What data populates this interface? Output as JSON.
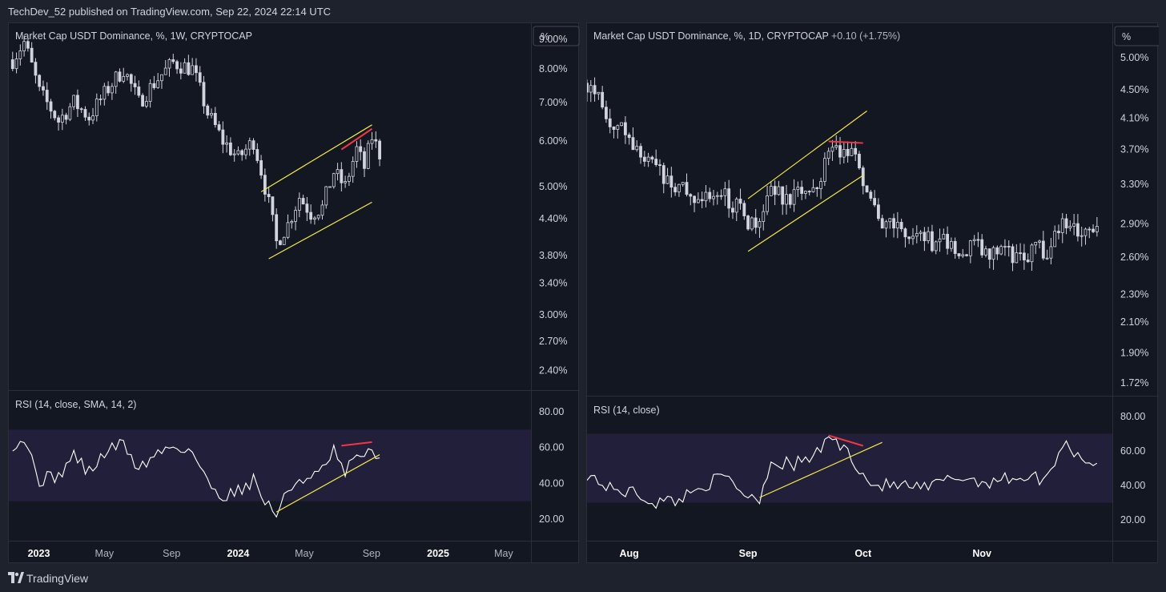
{
  "header": {
    "publisher": "TechDev_52 published on TradingView.com, Sep 22, 2024 22:14 UTC"
  },
  "footer": {
    "brand": "TradingView"
  },
  "colors": {
    "background": "#131722",
    "candle": "#d1d4dc",
    "channel": "#f3e84a",
    "divergence": "#f23645",
    "rsi_band": "#221f3a",
    "text": "#d1d4dc"
  },
  "chart_data": [
    {
      "type": "candlestick",
      "title": "Market Cap USDT Dominance, %, 1W, CRYPTOCAP",
      "unit_label": "%",
      "scale": "log",
      "y_ticks": [
        "9.00%",
        "8.00%",
        "7.00%",
        "6.00%",
        "5.00%",
        "4.40%",
        "3.80%",
        "3.40%",
        "3.00%",
        "2.70%",
        "2.40%"
      ],
      "x_ticks": [
        "2023",
        "May",
        "Sep",
        "2024",
        "May",
        "Sep",
        "2025",
        "May"
      ],
      "close_path": [
        {
          "date": "2022-11-14",
          "value": 8.3
        },
        {
          "date": "2022-12-05",
          "value": 8.9
        },
        {
          "date": "2023-01-02",
          "value": 7.3
        },
        {
          "date": "2023-02-06",
          "value": 6.5
        },
        {
          "date": "2023-03-06",
          "value": 7.0
        },
        {
          "date": "2023-04-03",
          "value": 6.6
        },
        {
          "date": "2023-05-08",
          "value": 7.4
        },
        {
          "date": "2023-06-05",
          "value": 8.0
        },
        {
          "date": "2023-07-03",
          "value": 7.0
        },
        {
          "date": "2023-08-07",
          "value": 7.7
        },
        {
          "date": "2023-09-04",
          "value": 8.2
        },
        {
          "date": "2023-10-09",
          "value": 8.0
        },
        {
          "date": "2023-11-06",
          "value": 6.7
        },
        {
          "date": "2023-12-04",
          "value": 6.0
        },
        {
          "date": "2024-01-01",
          "value": 5.6
        },
        {
          "date": "2024-01-29",
          "value": 6.0
        },
        {
          "date": "2024-02-19",
          "value": 5.0
        },
        {
          "date": "2024-03-11",
          "value": 4.0
        },
        {
          "date": "2024-04-01",
          "value": 4.3
        },
        {
          "date": "2024-04-22",
          "value": 4.8
        },
        {
          "date": "2024-05-13",
          "value": 4.5
        },
        {
          "date": "2024-06-03",
          "value": 4.6
        },
        {
          "date": "2024-06-24",
          "value": 5.3
        },
        {
          "date": "2024-07-15",
          "value": 5.0
        },
        {
          "date": "2024-08-05",
          "value": 5.8
        },
        {
          "date": "2024-08-19",
          "value": 5.4
        },
        {
          "date": "2024-09-02",
          "value": 6.1
        },
        {
          "date": "2024-09-16",
          "value": 5.7
        }
      ],
      "annotations": {
        "channel_upper": [
          {
            "date": "2024-02-12",
            "value": 4.9
          },
          {
            "date": "2024-09-02",
            "value": 6.4
          }
        ],
        "channel_lower": [
          {
            "date": "2024-02-26",
            "value": 3.75
          },
          {
            "date": "2024-09-02",
            "value": 4.7
          }
        ],
        "divergence": [
          {
            "date": "2024-07-08",
            "value": 5.8
          },
          {
            "date": "2024-09-02",
            "value": 6.3
          }
        ]
      },
      "rsi": {
        "label": "RSI (14, close, SMA, 14, 2)",
        "y_ticks": [
          "80.00",
          "60.00",
          "40.00",
          "20.00"
        ],
        "band": [
          30,
          70
        ],
        "values": [
          {
            "date": "2022-11-14",
            "value": 62
          },
          {
            "date": "2022-12-05",
            "value": 65
          },
          {
            "date": "2023-01-02",
            "value": 42
          },
          {
            "date": "2023-02-06",
            "value": 44
          },
          {
            "date": "2023-03-06",
            "value": 56
          },
          {
            "date": "2023-04-03",
            "value": 46
          },
          {
            "date": "2023-05-08",
            "value": 59
          },
          {
            "date": "2023-06-05",
            "value": 62
          },
          {
            "date": "2023-07-03",
            "value": 48
          },
          {
            "date": "2023-08-07",
            "value": 57
          },
          {
            "date": "2023-09-04",
            "value": 61
          },
          {
            "date": "2023-10-09",
            "value": 58
          },
          {
            "date": "2023-11-06",
            "value": 40
          },
          {
            "date": "2023-12-04",
            "value": 33
          },
          {
            "date": "2024-01-01",
            "value": 36
          },
          {
            "date": "2024-01-29",
            "value": 42
          },
          {
            "date": "2024-02-19",
            "value": 30
          },
          {
            "date": "2024-03-11",
            "value": 23
          },
          {
            "date": "2024-04-01",
            "value": 35
          },
          {
            "date": "2024-04-22",
            "value": 43
          },
          {
            "date": "2024-05-13",
            "value": 42
          },
          {
            "date": "2024-06-03",
            "value": 47
          },
          {
            "date": "2024-06-24",
            "value": 58
          },
          {
            "date": "2024-07-15",
            "value": 44
          },
          {
            "date": "2024-08-05",
            "value": 58
          },
          {
            "date": "2024-08-19",
            "value": 52
          },
          {
            "date": "2024-09-02",
            "value": 60
          },
          {
            "date": "2024-09-16",
            "value": 52
          }
        ],
        "annotations": {
          "trendline": [
            {
              "date": "2024-03-11",
              "value": 24
            },
            {
              "date": "2024-09-16",
              "value": 56
            }
          ],
          "divergence": [
            {
              "date": "2024-07-08",
              "value": 61
            },
            {
              "date": "2024-09-02",
              "value": 63
            }
          ]
        }
      }
    },
    {
      "type": "candlestick",
      "title": "Market Cap USDT Dominance, %, 1D, CRYPTOCAP",
      "change": "+0.10 (+1.75%)",
      "unit_label": "%",
      "scale": "log",
      "y_ticks": [
        "5.00%",
        "4.50%",
        "4.10%",
        "3.70%",
        "3.30%",
        "2.90%",
        "2.60%",
        "2.30%",
        "2.10%",
        "1.90%",
        "1.72%"
      ],
      "x_ticks": [
        "Aug",
        "Sep",
        "Oct",
        "Nov"
      ],
      "close_path": [
        {
          "date": "2024-07-21",
          "value": 4.6
        },
        {
          "date": "2024-07-27",
          "value": 4.1
        },
        {
          "date": "2024-08-02",
          "value": 3.8
        },
        {
          "date": "2024-08-08",
          "value": 3.45
        },
        {
          "date": "2024-08-14",
          "value": 3.25
        },
        {
          "date": "2024-08-20",
          "value": 3.2
        },
        {
          "date": "2024-08-26",
          "value": 3.15
        },
        {
          "date": "2024-09-01",
          "value": 2.95
        },
        {
          "date": "2024-09-04",
          "value": 2.85
        },
        {
          "date": "2024-09-07",
          "value": 3.25
        },
        {
          "date": "2024-09-13",
          "value": 3.15
        },
        {
          "date": "2024-09-19",
          "value": 3.3
        },
        {
          "date": "2024-09-22",
          "value": 3.75
        },
        {
          "date": "2024-09-28",
          "value": 3.65
        },
        {
          "date": "2024-10-01",
          "value": 3.35
        },
        {
          "date": "2024-10-04",
          "value": 3.0
        },
        {
          "date": "2024-10-10",
          "value": 2.85
        },
        {
          "date": "2024-10-17",
          "value": 2.75
        },
        {
          "date": "2024-10-25",
          "value": 2.7
        },
        {
          "date": "2024-11-02",
          "value": 2.65
        },
        {
          "date": "2024-11-10",
          "value": 2.62
        },
        {
          "date": "2024-11-18",
          "value": 2.68
        },
        {
          "date": "2024-11-22",
          "value": 2.95
        },
        {
          "date": "2024-11-28",
          "value": 2.8
        },
        {
          "date": "2024-12-01",
          "value": 2.95
        }
      ],
      "annotations": {
        "channel_upper": [
          {
            "date": "2024-09-01",
            "value": 3.15
          },
          {
            "date": "2024-10-02",
            "value": 4.2
          }
        ],
        "channel_lower": [
          {
            "date": "2024-09-01",
            "value": 2.65
          },
          {
            "date": "2024-10-01",
            "value": 3.4
          }
        ],
        "divergence": [
          {
            "date": "2024-09-22",
            "value": 3.8
          },
          {
            "date": "2024-10-01",
            "value": 3.78
          }
        ]
      },
      "rsi": {
        "label": "RSI (14, close)",
        "y_ticks": [
          "80.00",
          "60.00",
          "40.00",
          "20.00"
        ],
        "band": [
          30,
          70
        ],
        "values": [
          {
            "date": "2024-07-21",
            "value": 47
          },
          {
            "date": "2024-07-27",
            "value": 38
          },
          {
            "date": "2024-08-02",
            "value": 36
          },
          {
            "date": "2024-08-08",
            "value": 30
          },
          {
            "date": "2024-08-14",
            "value": 32
          },
          {
            "date": "2024-08-20",
            "value": 40
          },
          {
            "date": "2024-08-26",
            "value": 45
          },
          {
            "date": "2024-09-01",
            "value": 34
          },
          {
            "date": "2024-09-04",
            "value": 33
          },
          {
            "date": "2024-09-07",
            "value": 54
          },
          {
            "date": "2024-09-13",
            "value": 52
          },
          {
            "date": "2024-09-19",
            "value": 58
          },
          {
            "date": "2024-09-22",
            "value": 69
          },
          {
            "date": "2024-09-28",
            "value": 57
          },
          {
            "date": "2024-10-01",
            "value": 46
          },
          {
            "date": "2024-10-04",
            "value": 40
          },
          {
            "date": "2024-10-10",
            "value": 40
          },
          {
            "date": "2024-10-17",
            "value": 38
          },
          {
            "date": "2024-10-25",
            "value": 45
          },
          {
            "date": "2024-11-02",
            "value": 42
          },
          {
            "date": "2024-11-10",
            "value": 45
          },
          {
            "date": "2024-11-18",
            "value": 44
          },
          {
            "date": "2024-11-22",
            "value": 65
          },
          {
            "date": "2024-11-28",
            "value": 55
          },
          {
            "date": "2024-12-01",
            "value": 52
          }
        ],
        "annotations": {
          "trendline": [
            {
              "date": "2024-09-04",
              "value": 33
            },
            {
              "date": "2024-10-06",
              "value": 65
            }
          ],
          "divergence": [
            {
              "date": "2024-09-22",
              "value": 69
            },
            {
              "date": "2024-10-01",
              "value": 63
            }
          ]
        }
      }
    }
  ]
}
